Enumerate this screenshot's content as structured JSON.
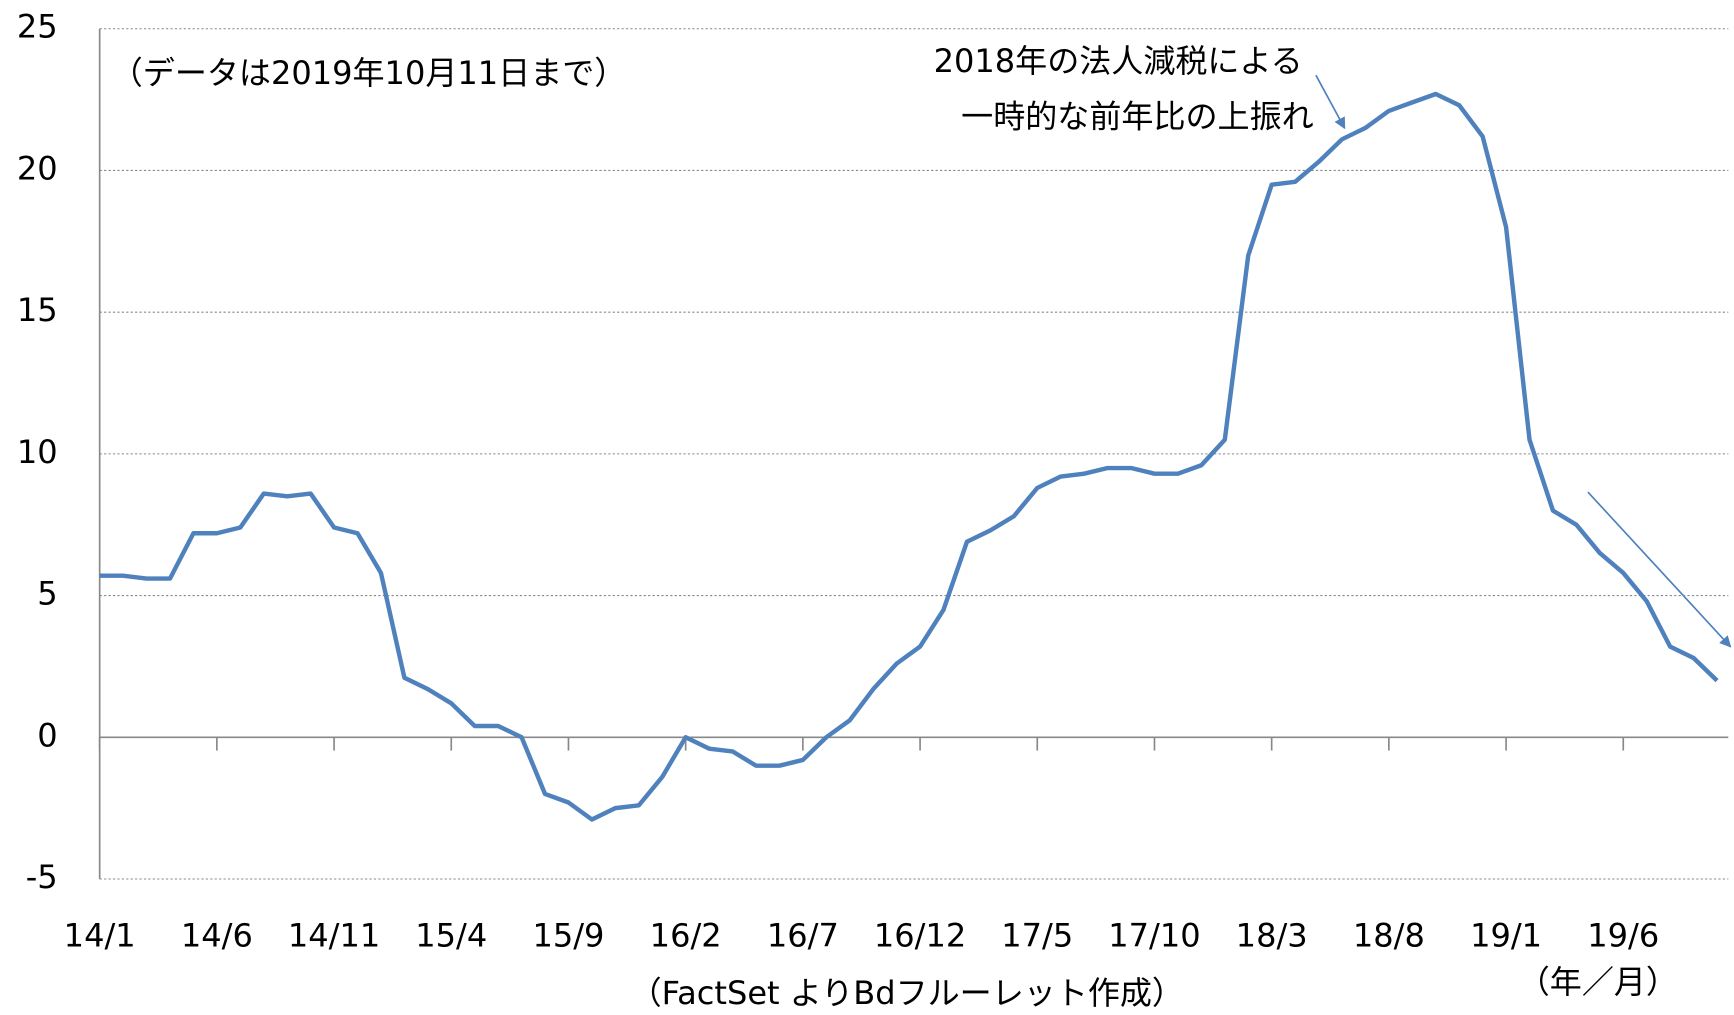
{
  "chart_data": {
    "type": "line",
    "annotations": [
      "（データは2019年10月11日まで）",
      "2018年の法人減税による",
      "一時的な前年比の上振れ"
    ],
    "source": "（FactSet よりBdフルーレット作成）",
    "x_label": "（年／月）",
    "categories": [
      "14/1",
      null,
      null,
      null,
      null,
      "14/6",
      null,
      null,
      null,
      null,
      "14/11",
      null,
      null,
      null,
      null,
      "15/4",
      null,
      null,
      null,
      null,
      "15/9",
      null,
      null,
      null,
      null,
      "16/2",
      null,
      null,
      null,
      null,
      "16/7",
      null,
      null,
      null,
      null,
      "16/12",
      null,
      null,
      null,
      null,
      "17/5",
      null,
      null,
      null,
      null,
      "17/10",
      null,
      null,
      null,
      null,
      "18/3",
      null,
      null,
      null,
      null,
      "18/8",
      null,
      null,
      null,
      null,
      "19/1",
      null,
      null,
      null,
      null,
      "19/6",
      null,
      null,
      null,
      null
    ],
    "series": [
      {
        "color": "#4f81bd",
        "values": [
          5.7,
          5.7,
          5.6,
          5.6,
          7.2,
          7.2,
          7.4,
          8.6,
          8.5,
          8.6,
          7.4,
          7.2,
          5.8,
          2.1,
          1.7,
          1.2,
          0.4,
          0.4,
          0,
          -2.0,
          -2.3,
          -2.9,
          -2.5,
          -2.4,
          -1.4,
          0,
          -0.4,
          -0.5,
          -1.0,
          -1.0,
          -0.8,
          0,
          0.6,
          1.7,
          2.6,
          3.2,
          4.5,
          6.9,
          7.3,
          7.8,
          8.8,
          9.2,
          9.3,
          9.5,
          9.5,
          9.3,
          9.3,
          9.6,
          10.5,
          17,
          19.5,
          19.6,
          20.3,
          21.1,
          21.5,
          22.1,
          22.4,
          22.7,
          22.3,
          21.2,
          18,
          10.5,
          8,
          7.5,
          6.5,
          5.8,
          4.8,
          3.2,
          2.8,
          2.0
        ]
      }
    ],
    "ylim": [
      -5,
      25
    ],
    "yticks": [
      -5,
      0,
      5,
      10,
      15,
      20,
      25
    ],
    "grid": true
  }
}
